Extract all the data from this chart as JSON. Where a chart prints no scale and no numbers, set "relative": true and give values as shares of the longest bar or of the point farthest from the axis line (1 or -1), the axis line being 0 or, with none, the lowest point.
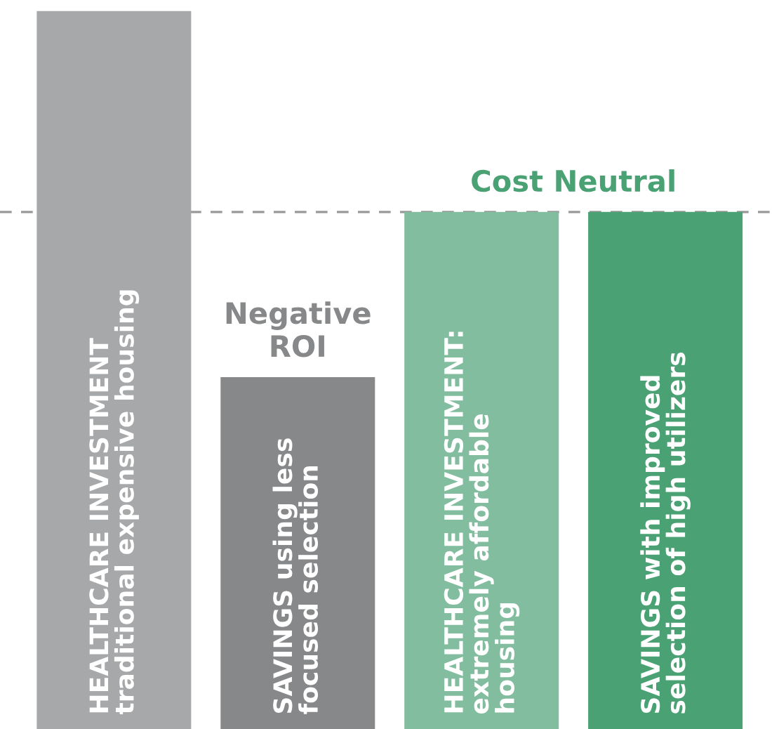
{
  "chart_data": {
    "type": "bar",
    "relative": true,
    "categories": [
      "HEALTHCARE INVESTMENT\ntraditional expensive housing",
      "SAVINGS using less\nfocused selection",
      "HEALTHCARE INVESTMENT:\nextremely affordable\nhousing",
      "SAVINGS with improved\nselection of high utilizers"
    ],
    "values": [
      1,
      0.49,
      0.72,
      0.72
    ],
    "colors": [
      "#a7a8aa",
      "#87888a",
      "#82bd9f",
      "#4aa174"
    ],
    "ref_lines": [
      {
        "axis": "y",
        "value": 0.72,
        "label": "Cost Neutral",
        "color": "#999999",
        "line_style": "dashed"
      }
    ],
    "annotations": [
      {
        "text": "Negative\nROI",
        "x": "SAVINGS using less\nfocused selection",
        "y": 0.49
      }
    ]
  }
}
